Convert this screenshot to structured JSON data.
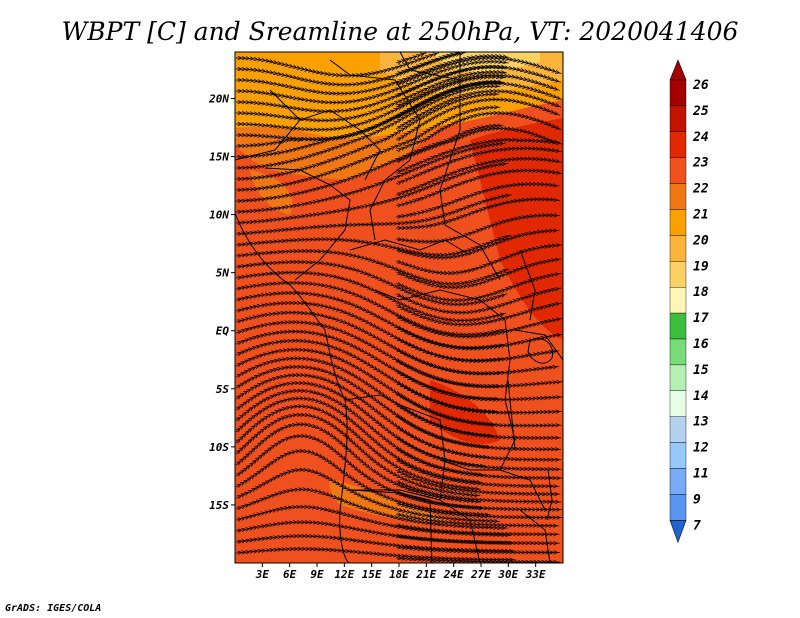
{
  "title": "WBPT [C] and Sreamline at 250hPa, VT: 2020041406",
  "credit": "GrADS: IGES/COLA",
  "map": {
    "lon_range": [
      0,
      36
    ],
    "lat_range": [
      -20,
      24
    ],
    "lat_ticks": [
      {
        "value": 20,
        "label": "20N"
      },
      {
        "value": 15,
        "label": "15N"
      },
      {
        "value": 10,
        "label": "10N"
      },
      {
        "value": 5,
        "label": "5N"
      },
      {
        "value": 0,
        "label": "EQ"
      },
      {
        "value": -5,
        "label": "5S"
      },
      {
        "value": -10,
        "label": "10S"
      },
      {
        "value": -15,
        "label": "15S"
      }
    ],
    "lon_ticks": [
      {
        "value": 3,
        "label": "3E"
      },
      {
        "value": 6,
        "label": "6E"
      },
      {
        "value": 9,
        "label": "9E"
      },
      {
        "value": 12,
        "label": "12E"
      },
      {
        "value": 15,
        "label": "15E"
      },
      {
        "value": 18,
        "label": "18E"
      },
      {
        "value": 21,
        "label": "21E"
      },
      {
        "value": 24,
        "label": "24E"
      },
      {
        "value": 27,
        "label": "27E"
      },
      {
        "value": 30,
        "label": "30E"
      },
      {
        "value": 33,
        "label": "33E"
      }
    ],
    "dominant_field_color": "#f0501e"
  },
  "colorbar": {
    "levels": [
      {
        "label": "26",
        "color": "#a50000"
      },
      {
        "label": "25",
        "color": "#c31400"
      },
      {
        "label": "24",
        "color": "#e12800"
      },
      {
        "label": "23",
        "color": "#f0501e"
      },
      {
        "label": "22",
        "color": "#f07814"
      },
      {
        "label": "21",
        "color": "#faa000"
      },
      {
        "label": "20",
        "color": "#fab43c"
      },
      {
        "label": "19",
        "color": "#fad264"
      },
      {
        "label": "18",
        "color": "#fff5b4"
      },
      {
        "label": "17",
        "color": "#3cbe3c"
      },
      {
        "label": "16",
        "color": "#78dc78"
      },
      {
        "label": "15",
        "color": "#b4f0b4"
      },
      {
        "label": "14",
        "color": "#e6ffe6"
      },
      {
        "label": "13",
        "color": "#b4d2f0"
      },
      {
        "label": "12",
        "color": "#96c8fa"
      },
      {
        "label": "11",
        "color": "#78aaf5"
      },
      {
        "label": "9",
        "color": "#5a96f0"
      },
      {
        "label": "7",
        "color": "#3c78e6"
      }
    ],
    "bottom_color": "#1e64d2"
  }
}
